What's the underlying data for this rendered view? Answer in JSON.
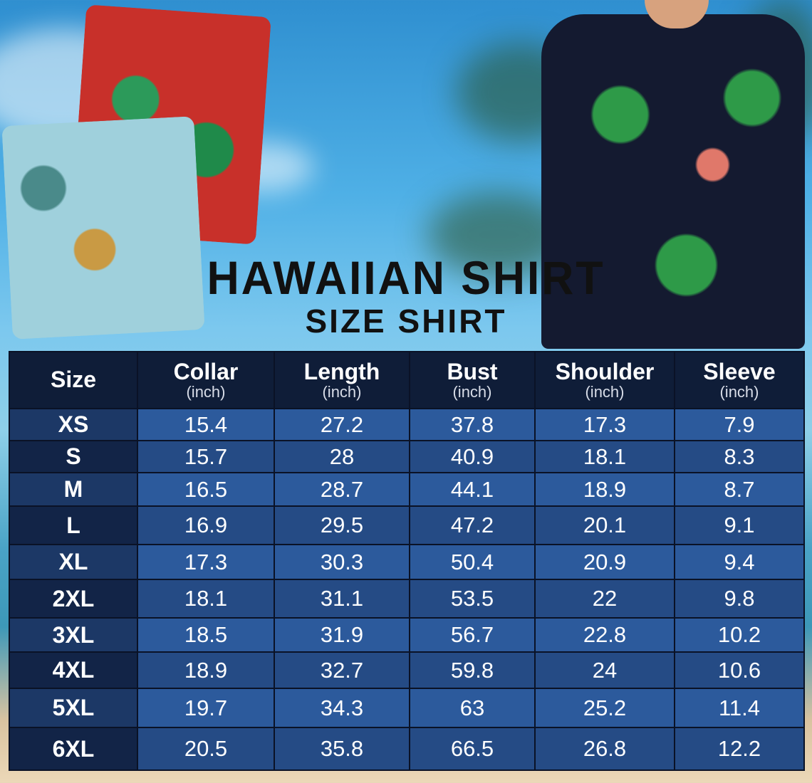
{
  "title": "HAWAIIAN SHIRT",
  "subtitle": "SIZE SHIRT",
  "table": {
    "headers": [
      {
        "label": "Size",
        "unit": ""
      },
      {
        "label": "Collar",
        "unit": "(inch)"
      },
      {
        "label": "Length",
        "unit": "(inch)"
      },
      {
        "label": "Bust",
        "unit": "(inch)"
      },
      {
        "label": "Shoulder",
        "unit": "(inch)"
      },
      {
        "label": "Sleeve",
        "unit": "(inch)"
      }
    ],
    "rows": [
      [
        "XS",
        "15.4",
        "27.2",
        "37.8",
        "17.3",
        "7.9"
      ],
      [
        "S",
        "15.7",
        "28",
        "40.9",
        "18.1",
        "8.3"
      ],
      [
        "M",
        "16.5",
        "28.7",
        "44.1",
        "18.9",
        "8.7"
      ],
      [
        "L",
        "16.9",
        "29.5",
        "47.2",
        "20.1",
        "9.1"
      ],
      [
        "XL",
        "17.3",
        "30.3",
        "50.4",
        "20.9",
        "9.4"
      ],
      [
        "2XL",
        "18.1",
        "31.1",
        "53.5",
        "22",
        "9.8"
      ],
      [
        "3XL",
        "18.5",
        "31.9",
        "56.7",
        "22.8",
        "10.2"
      ],
      [
        "4XL",
        "18.9",
        "32.7",
        "59.8",
        "24",
        "10.6"
      ],
      [
        "5XL",
        "19.7",
        "34.3",
        "63",
        "25.2",
        "11.4"
      ],
      [
        "6XL",
        "20.5",
        "35.8",
        "66.5",
        "26.8",
        "12.2"
      ]
    ]
  },
  "colors": {
    "header": "#0f1d38",
    "row_light": "#2c5a9c",
    "row_dark": "#254b85"
  }
}
